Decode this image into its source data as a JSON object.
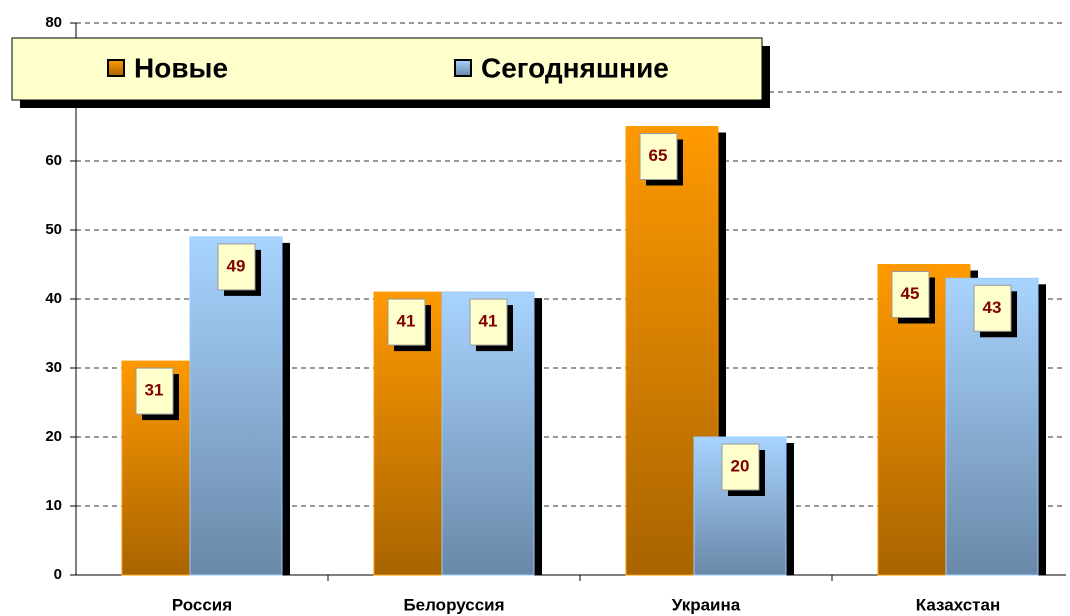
{
  "chart_data": {
    "type": "bar",
    "categories": [
      "Россия",
      "Белоруссия",
      "Украина",
      "Казахстан"
    ],
    "series": [
      {
        "name": "Новые",
        "color": "#ff9900",
        "values": [
          31,
          41,
          65,
          45
        ]
      },
      {
        "name": "Сегодняшние",
        "color": "#99ccff",
        "values": [
          49,
          41,
          20,
          43
        ]
      }
    ],
    "ylim": [
      0,
      80
    ],
    "yticks": [
      0,
      10,
      20,
      30,
      40,
      50,
      60,
      70,
      80
    ],
    "grid": true
  }
}
